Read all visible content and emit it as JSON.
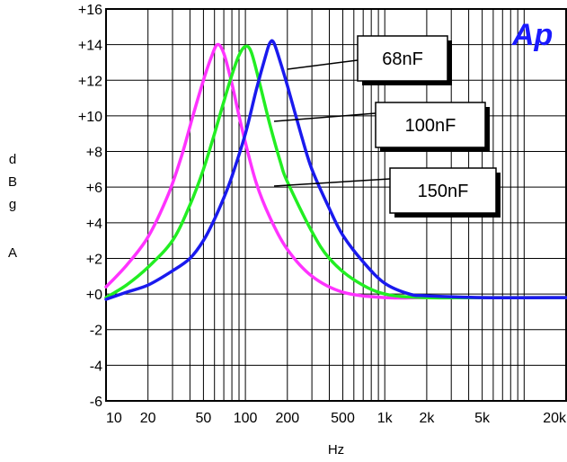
{
  "logo": "Ap",
  "chart_data": {
    "type": "line",
    "xlabel": "Hz",
    "ylabel": [
      "d",
      "B",
      "g",
      "A"
    ],
    "x_scale": "log",
    "xlim": [
      10,
      20000
    ],
    "ylim": [
      -6,
      16
    ],
    "grid": true,
    "x_ticks": [
      {
        "value": 10,
        "label": "10"
      },
      {
        "value": 20,
        "label": "20"
      },
      {
        "value": 50,
        "label": "50"
      },
      {
        "value": 100,
        "label": "100"
      },
      {
        "value": 200,
        "label": "200"
      },
      {
        "value": 500,
        "label": "500"
      },
      {
        "value": 1000,
        "label": "1k"
      },
      {
        "value": 2000,
        "label": "2k"
      },
      {
        "value": 5000,
        "label": "5k"
      },
      {
        "value": 20000,
        "label": "20k"
      }
    ],
    "y_ticks": [
      {
        "value": 16,
        "label": "+16"
      },
      {
        "value": 14,
        "label": "+14"
      },
      {
        "value": 12,
        "label": "+12"
      },
      {
        "value": 10,
        "label": "+10"
      },
      {
        "value": 8,
        "label": "+8"
      },
      {
        "value": 6,
        "label": "+6"
      },
      {
        "value": 4,
        "label": "+4"
      },
      {
        "value": 2,
        "label": "+2"
      },
      {
        "value": 0,
        "label": "+0"
      },
      {
        "value": -2,
        "label": "-2"
      },
      {
        "value": -4,
        "label": "-4"
      },
      {
        "value": -6,
        "label": "-6"
      }
    ],
    "series": [
      {
        "name": "150nF",
        "color": "#ff33ff",
        "points": [
          [
            10,
            0.4
          ],
          [
            14,
            1.6
          ],
          [
            20,
            3.2
          ],
          [
            28,
            5.6
          ],
          [
            35,
            7.8
          ],
          [
            42,
            10.0
          ],
          [
            50,
            12.0
          ],
          [
            57,
            13.3
          ],
          [
            63,
            14.0
          ],
          [
            70,
            13.5
          ],
          [
            80,
            11.8
          ],
          [
            90,
            10.0
          ],
          [
            100,
            8.5
          ],
          [
            120,
            6.2
          ],
          [
            150,
            4.3
          ],
          [
            200,
            2.5
          ],
          [
            300,
            1.0
          ],
          [
            500,
            0.1
          ],
          [
            1000,
            -0.2
          ],
          [
            2000,
            -0.2
          ],
          [
            5000,
            -0.2
          ],
          [
            20000,
            -0.2
          ]
        ]
      },
      {
        "name": "100nF",
        "color": "#22ee22",
        "points": [
          [
            10,
            -0.2
          ],
          [
            14,
            0.5
          ],
          [
            20,
            1.5
          ],
          [
            30,
            3.0
          ],
          [
            40,
            5.0
          ],
          [
            50,
            7.0
          ],
          [
            60,
            9.0
          ],
          [
            70,
            10.8
          ],
          [
            80,
            12.3
          ],
          [
            90,
            13.4
          ],
          [
            100,
            13.9
          ],
          [
            110,
            13.6
          ],
          [
            125,
            12.0
          ],
          [
            150,
            9.5
          ],
          [
            180,
            7.3
          ],
          [
            200,
            6.3
          ],
          [
            300,
            3.5
          ],
          [
            400,
            2.0
          ],
          [
            600,
            0.8
          ],
          [
            1000,
            0.0
          ],
          [
            2000,
            -0.2
          ],
          [
            5000,
            -0.2
          ],
          [
            20000,
            -0.2
          ]
        ]
      },
      {
        "name": "68nF",
        "color": "#1a1aee",
        "points": [
          [
            10,
            -0.3
          ],
          [
            14,
            0.1
          ],
          [
            20,
            0.5
          ],
          [
            30,
            1.3
          ],
          [
            40,
            2.0
          ],
          [
            50,
            3.0
          ],
          [
            60,
            4.2
          ],
          [
            70,
            5.4
          ],
          [
            80,
            6.6
          ],
          [
            100,
            9.0
          ],
          [
            120,
            11.5
          ],
          [
            140,
            13.4
          ],
          [
            150,
            14.1
          ],
          [
            160,
            14.1
          ],
          [
            180,
            12.9
          ],
          [
            200,
            11.7
          ],
          [
            250,
            9.0
          ],
          [
            300,
            7.0
          ],
          [
            400,
            4.8
          ],
          [
            500,
            3.3
          ],
          [
            700,
            1.8
          ],
          [
            1000,
            0.6
          ],
          [
            1500,
            0.0
          ],
          [
            2000,
            -0.1
          ],
          [
            5000,
            -0.2
          ],
          [
            20000,
            -0.2
          ]
        ]
      }
    ],
    "annotations": [
      {
        "text": "68nF",
        "series": "68nF"
      },
      {
        "text": "100nF",
        "series": "100nF"
      },
      {
        "text": "150nF",
        "series": "150nF"
      }
    ]
  }
}
